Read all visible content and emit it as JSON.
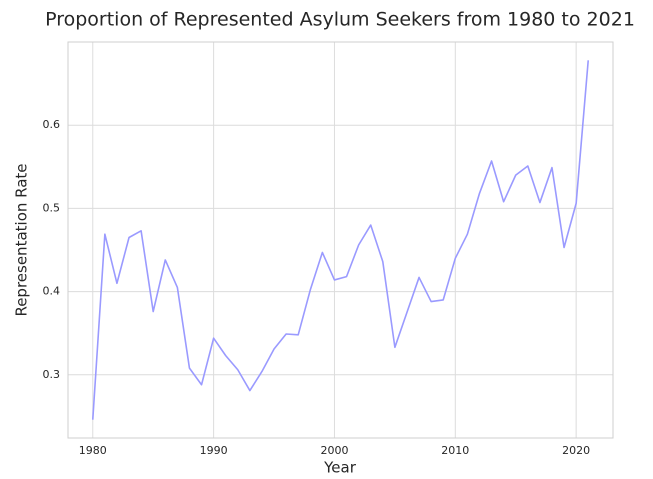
{
  "chart_data": {
    "type": "line",
    "title": "Proportion of Represented Asylum Seekers from 1980 to 2021",
    "xlabel": "Year",
    "ylabel": "Representation Rate",
    "x": [
      1980,
      1981,
      1982,
      1983,
      1984,
      1985,
      1986,
      1987,
      1988,
      1989,
      1990,
      1991,
      1992,
      1993,
      1994,
      1995,
      1996,
      1997,
      1998,
      1999,
      2000,
      2001,
      2002,
      2003,
      2004,
      2005,
      2006,
      2007,
      2008,
      2009,
      2010,
      2011,
      2012,
      2013,
      2014,
      2015,
      2016,
      2017,
      2018,
      2019,
      2020,
      2021
    ],
    "series": [
      {
        "color": "#9a9aff",
        "values": [
          0.246,
          0.469,
          0.41,
          0.465,
          0.473,
          0.376,
          0.438,
          0.405,
          0.308,
          0.288,
          0.344,
          0.323,
          0.306,
          0.281,
          0.304,
          0.331,
          0.349,
          0.348,
          0.402,
          0.447,
          0.414,
          0.418,
          0.456,
          0.48,
          0.436,
          0.333,
          0.375,
          0.417,
          0.388,
          0.39,
          0.44,
          0.469,
          0.518,
          0.557,
          0.508,
          0.54,
          0.551,
          0.507,
          0.549,
          0.453,
          0.506,
          0.678
        ]
      }
    ],
    "xlim": [
      1977.95,
      2023.05
    ],
    "xticks": [
      1980,
      1990,
      2000,
      2010,
      2020
    ],
    "ylim": [
      0.224,
      0.7
    ],
    "yticks": [
      0.3,
      0.4,
      0.5,
      0.6
    ],
    "grid": true
  }
}
